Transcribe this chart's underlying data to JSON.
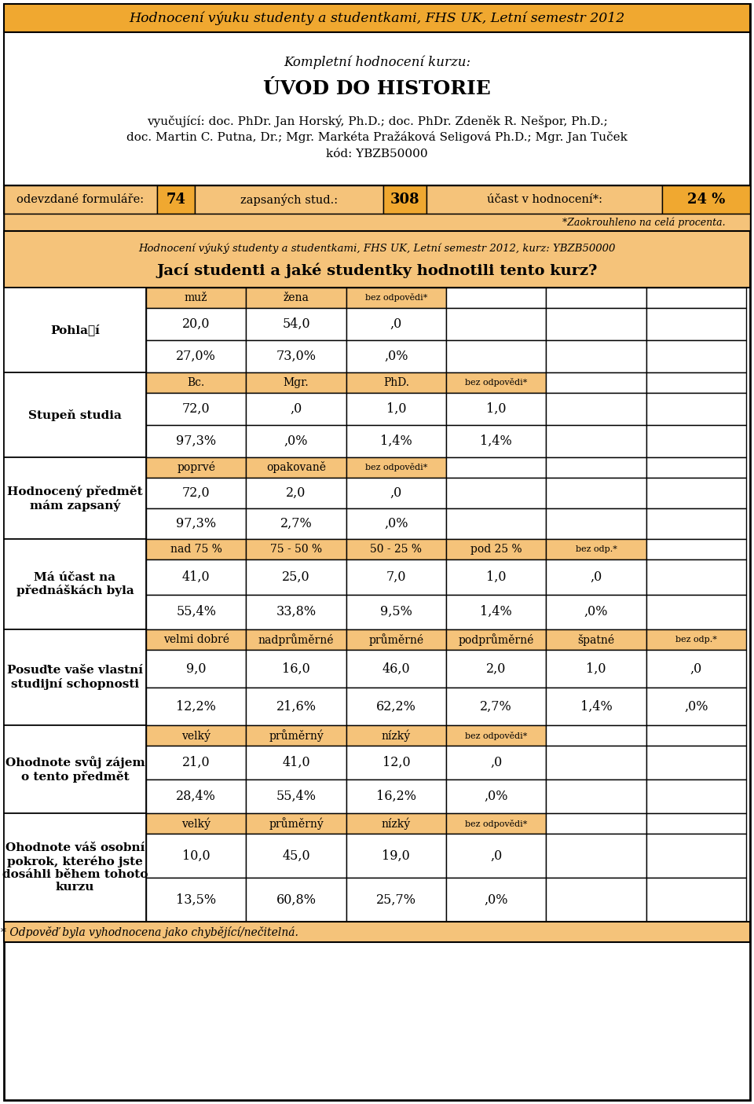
{
  "title_header": "Hodnocení výuku studenty a studentkami, FHS UK, Letní semestr 2012",
  "subtitle1": "Kompletní hodnocení kurzu:",
  "subtitle2": "ÚVOD DO HISTORIE",
  "instr1_pre": "vyučující: doc. PhDr. ",
  "instr1_bold": "Jan Horský",
  "instr1_mid": ", Ph.D.; doc. PhDr. ",
  "instr1_bold2": "Zdeněk R. Nešpor",
  "instr1_post": ", Ph.D.;",
  "instr2_pre": "doc. ",
  "instr2_bold": "Martin C. Putna",
  "instr2_mid": ", Dr.; Mgr. ",
  "instr2_bold2": "Markéta Pražáková Seligová",
  "instr2_post": " Ph.D.; Mgr. ",
  "instr2_bold3": "Jan Tuček",
  "kod_line": "kód: YBZB50000",
  "form_label": "odevzdané formuláře:",
  "form_value": "74",
  "enrolled_label": "zapsaných stud.:",
  "enrolled_value": "308",
  "participation_label": "účast v hodnocení*:",
  "participation_value": "24 %",
  "rounded_note": "*Zaokrouhleno na celá procenta.",
  "section2_italic": "Hodnocení výuký studenty a studentkami, FHS UK, Letní semestr 2012, kurz: YBZB50000",
  "section2_bold": "Jací studenti a jaké studentky hodnotili tento kurz?",
  "footer_note": "* Odpověď byla vyhodnocena jako chybějící/nečitelná.",
  "orange": "#F0A830",
  "orange_light": "#F5C37A",
  "white": "#FFFFFF",
  "black": "#000000",
  "rows": [
    {
      "label": "Pohlaवí",
      "col_headers": [
        "muž",
        "žena",
        "bez odpovědi*",
        "",
        "",
        ""
      ],
      "num_cols": 3,
      "values": [
        "20,0",
        "54,0",
        ",0",
        "",
        "",
        ""
      ],
      "percents": [
        "27,0%",
        "73,0%",
        ",0%",
        "",
        "",
        ""
      ]
    },
    {
      "label": "Stupeň studia",
      "col_headers": [
        "Bc.",
        "Mgr.",
        "PhD.",
        "bez odpovědi*",
        "",
        ""
      ],
      "num_cols": 4,
      "values": [
        "72,0",
        ",0",
        "1,0",
        "1,0",
        "",
        ""
      ],
      "percents": [
        "97,3%",
        ",0%",
        "1,4%",
        "1,4%",
        "",
        ""
      ]
    },
    {
      "label": "Hodnocený předmět\nmám zapsaný",
      "col_headers": [
        "poprvé",
        "opakovaně",
        "bez odpovědi*",
        "",
        "",
        ""
      ],
      "num_cols": 3,
      "values": [
        "72,0",
        "2,0",
        ",0",
        "",
        "",
        ""
      ],
      "percents": [
        "97,3%",
        "2,7%",
        ",0%",
        "",
        "",
        ""
      ]
    },
    {
      "label": "Má účast na\npřednáškách byla",
      "col_headers": [
        "nad 75 %",
        "75 - 50 %",
        "50 - 25 %",
        "pod 25 %",
        "bez odp.*",
        ""
      ],
      "num_cols": 5,
      "values": [
        "41,0",
        "25,0",
        "7,0",
        "1,0",
        ",0",
        ""
      ],
      "percents": [
        "55,4%",
        "33,8%",
        "9,5%",
        "1,4%",
        ",0%",
        ""
      ]
    },
    {
      "label": "Posuďte vaše vlastní\nstudijní schopnosti",
      "col_headers": [
        "velmi dobré",
        "nadprůměrné",
        "průměrné",
        "podprůměrné",
        "špatné",
        "bez odp.*"
      ],
      "num_cols": 6,
      "values": [
        "9,0",
        "16,0",
        "46,0",
        "2,0",
        "1,0",
        ",0"
      ],
      "percents": [
        "12,2%",
        "21,6%",
        "62,2%",
        "2,7%",
        "1,4%",
        ",0%"
      ]
    },
    {
      "label": "Ohodnote svůj zájem\no tento předmět",
      "col_headers": [
        "velký",
        "průměrný",
        "nízký",
        "bez odpovědi*",
        "",
        ""
      ],
      "num_cols": 4,
      "values": [
        "21,0",
        "41,0",
        "12,0",
        ",0",
        "",
        ""
      ],
      "percents": [
        "28,4%",
        "55,4%",
        "16,2%",
        ",0%",
        "",
        ""
      ]
    },
    {
      "label": "Ohodnote váš osobní\npokrok, kterého jste\ndosáhli během tohoto\nkurzu",
      "col_headers": [
        "velký",
        "průměrný",
        "nízký",
        "bez odpovědi*",
        "",
        ""
      ],
      "num_cols": 4,
      "values": [
        "10,0",
        "45,0",
        "19,0",
        ",0",
        "",
        ""
      ],
      "percents": [
        "13,5%",
        "60,8%",
        "25,7%",
        ",0%",
        "",
        ""
      ]
    }
  ]
}
